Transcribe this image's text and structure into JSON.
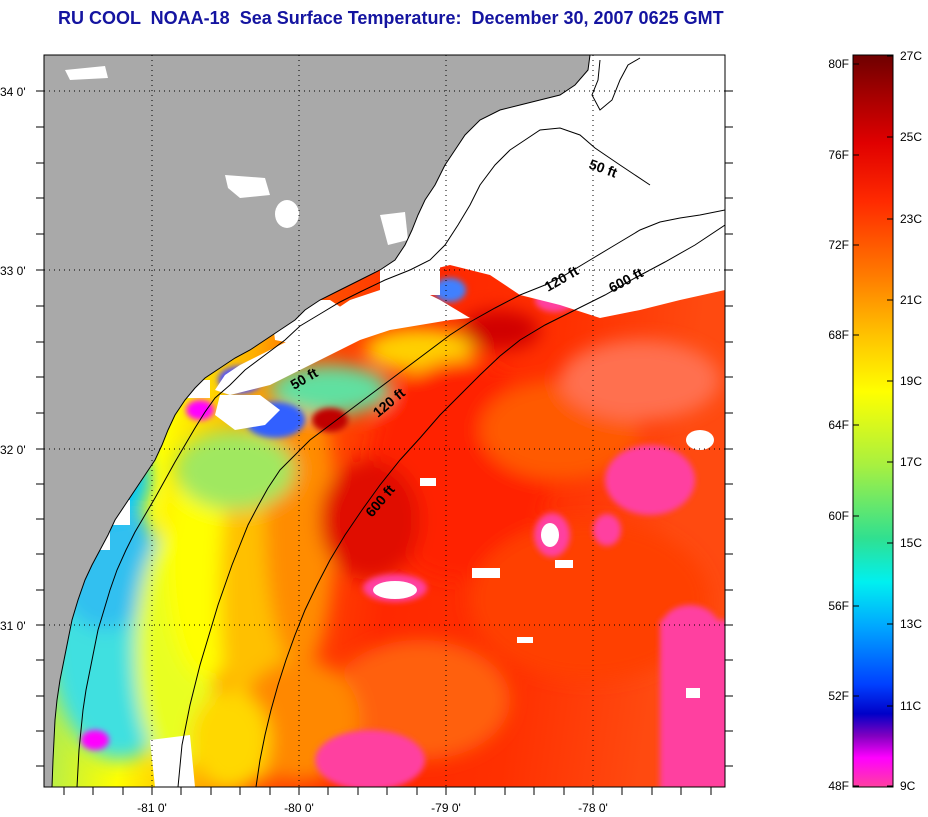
{
  "title": "RU COOL  NOAA-18  Sea Surface Temperature:  December 30, 2007 0625 GMT",
  "map": {
    "lat_ticks": [
      "34 0'",
      "33 0'",
      "32 0'",
      "31 0'"
    ],
    "lon_ticks": [
      "-81 0'",
      "-80 0'",
      "-79 0'",
      "-78 0'"
    ],
    "contour_labels": [
      "50 ft",
      "120 ft",
      "600 ft",
      "50 ft",
      "120 ft",
      "600 ft"
    ],
    "colors": {
      "land": "#a9a9a9",
      "cloud": "#ffffff",
      "coast": "#000000"
    }
  },
  "colorbar": {
    "fahrenheit": [
      "80F",
      "76F",
      "72F",
      "68F",
      "64F",
      "60F",
      "56F",
      "52F",
      "48F"
    ],
    "celsius": [
      "27C",
      "25C",
      "23C",
      "21C",
      "19C",
      "17C",
      "15C",
      "13C",
      "11C",
      "9C"
    ],
    "range_c": [
      9,
      27
    ]
  }
}
